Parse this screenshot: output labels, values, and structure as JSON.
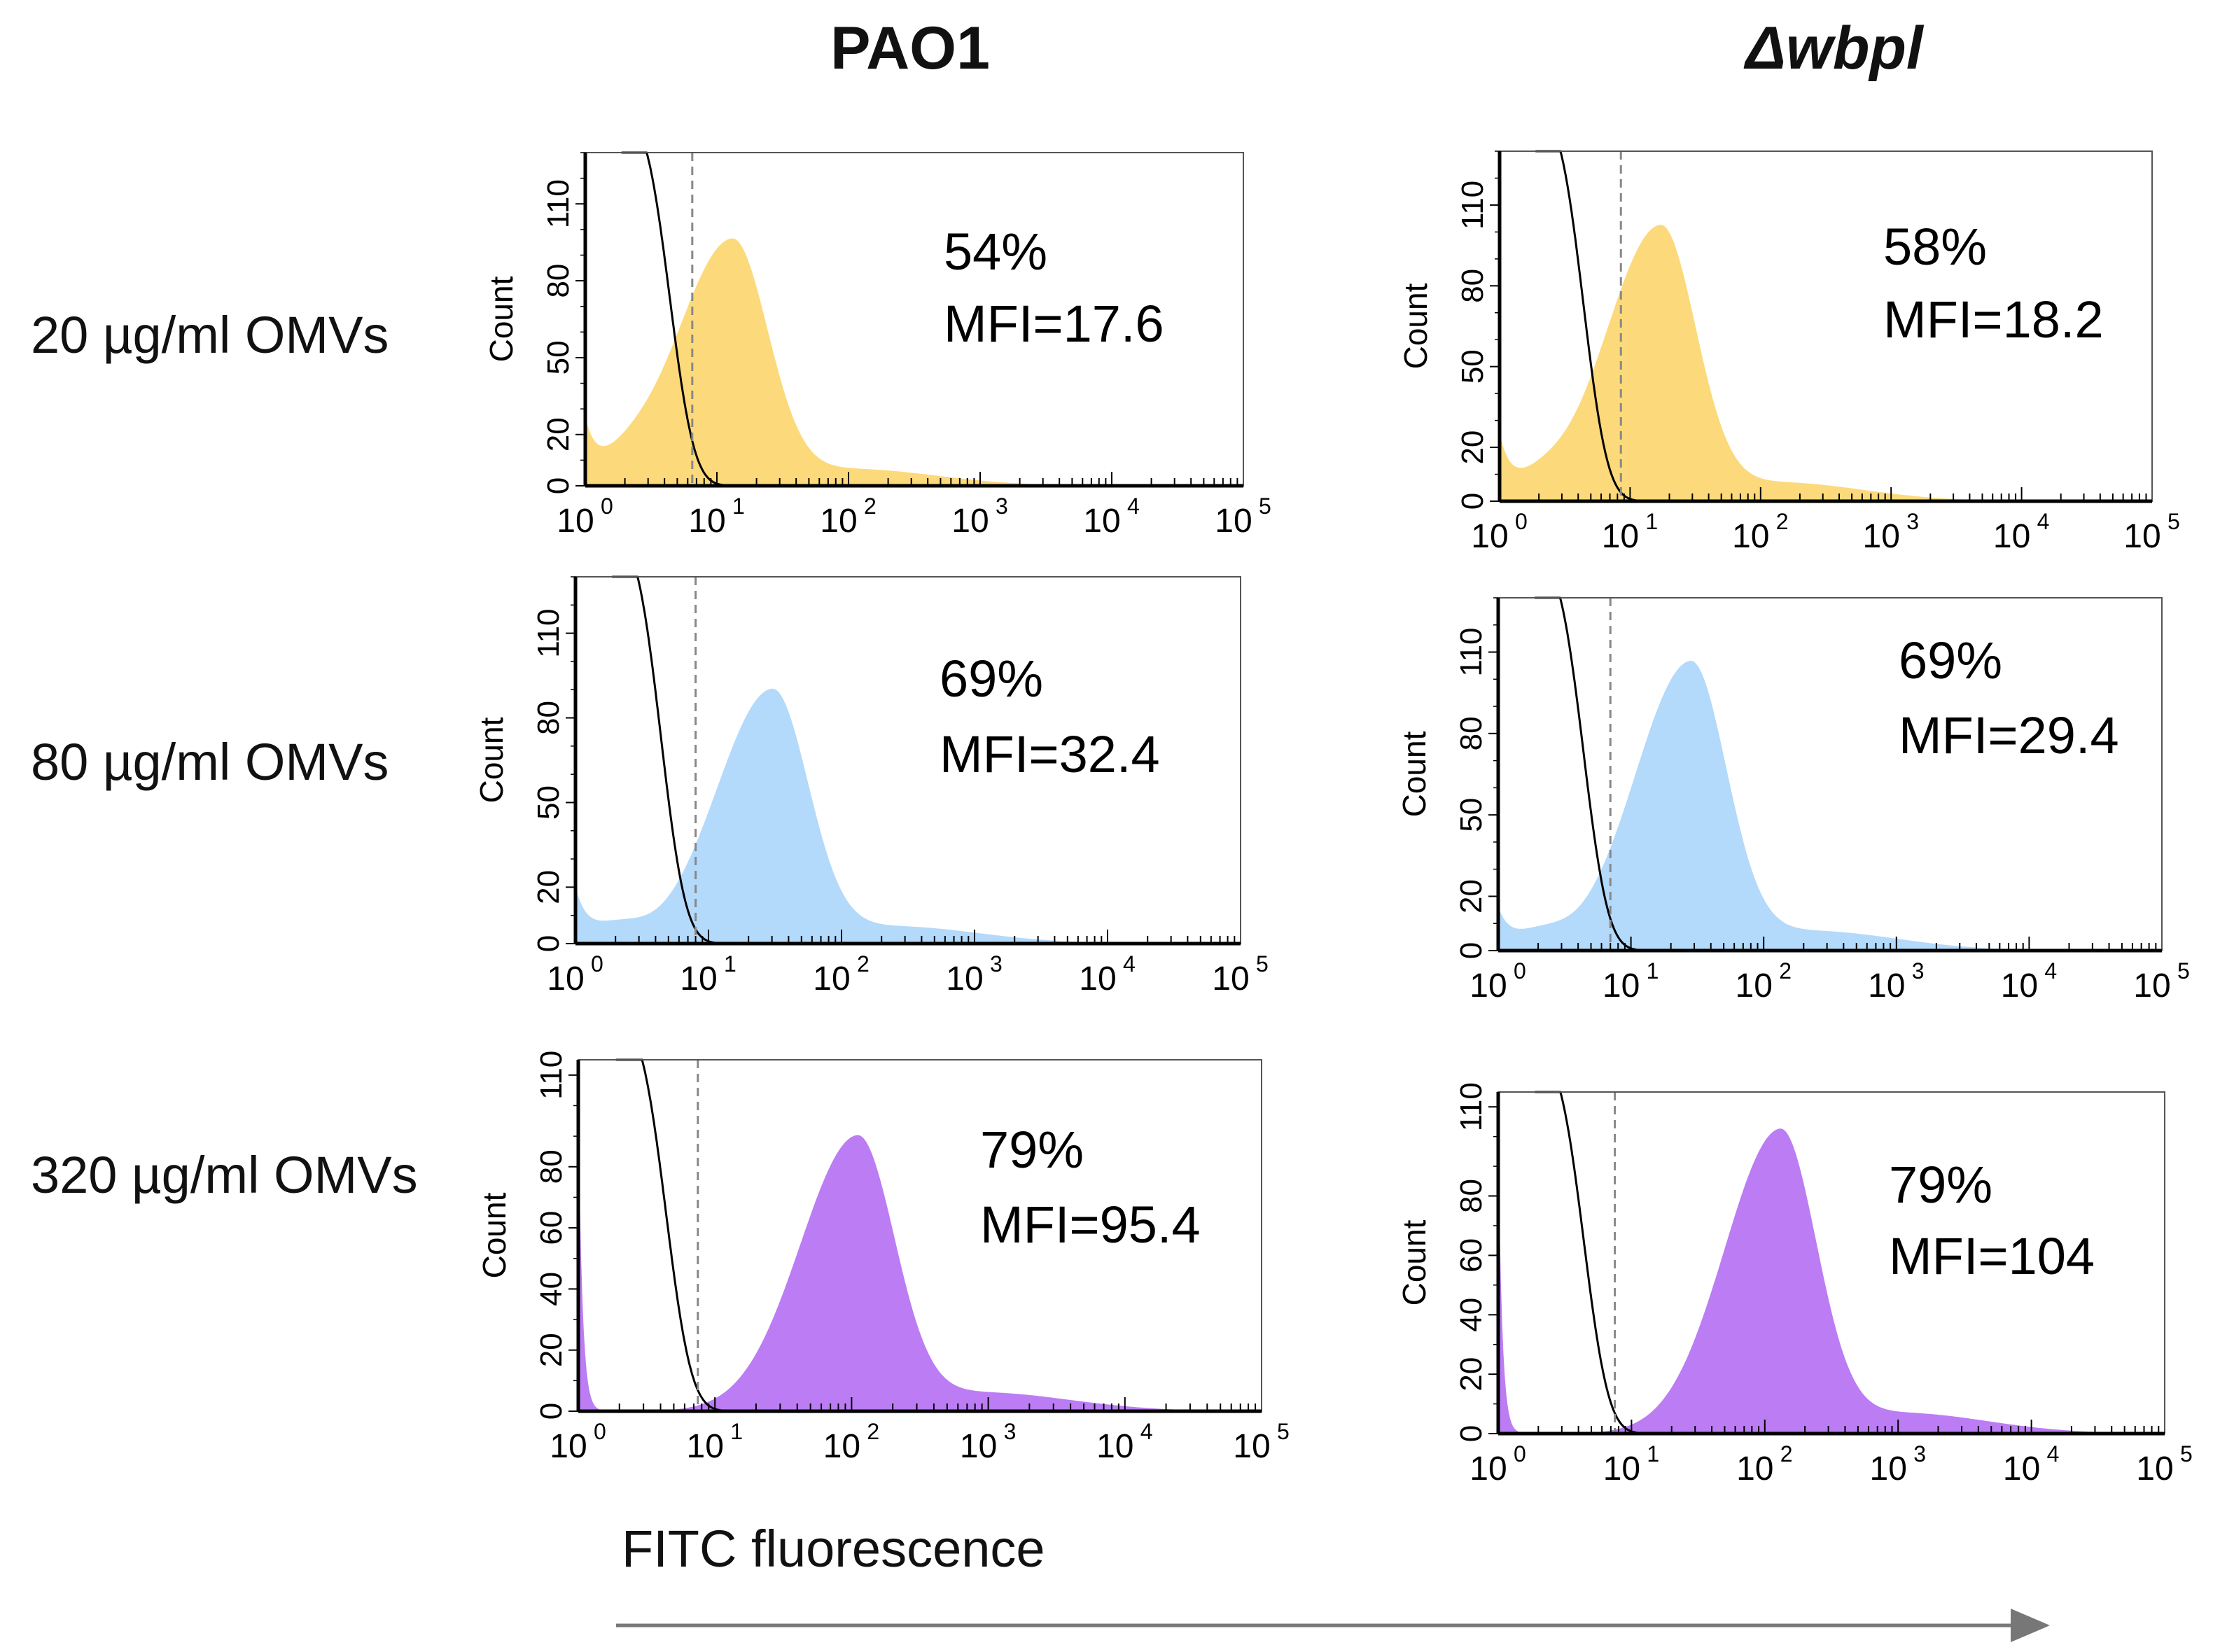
{
  "columns": [
    "PAO1",
    "Δwbpl"
  ],
  "rows": [
    "20 µg/ml OMVs",
    "80 µg/ml OMVs",
    "320 µg/ml OMVs"
  ],
  "x_axis_caption": "FITC fluorescence",
  "colors": {
    "yellow": "#fcd97a",
    "blue": "#b3d9fb",
    "purple": "#bb7cf4",
    "axis": "#000000",
    "gate": "#888888",
    "arrow": "#777777"
  },
  "chart_data": [
    {
      "type": "area",
      "id": "pao1-20",
      "column": "PAO1",
      "row": "20 µg/ml OMVs",
      "fill": "yellow",
      "percent": "54%",
      "mfi": "MFI=17.6",
      "gate_x": 6.5,
      "peak_x": 13,
      "peak_y": 94,
      "left_y": 22,
      "y_ticks": [
        "0",
        "20",
        "50",
        "80",
        "110"
      ],
      "ylabel": "Count",
      "ylim": [
        0,
        130
      ],
      "x_ticks": [
        "10",
        "10",
        "10",
        "10",
        "10",
        "10"
      ],
      "x_exps": [
        "0",
        "1",
        "2",
        "3",
        "4",
        "5"
      ],
      "xlim": [
        1,
        100000
      ]
    },
    {
      "type": "area",
      "id": "pao1-80",
      "column": "PAO1",
      "row": "80 µg/ml OMVs",
      "fill": "blue",
      "percent": "69%",
      "mfi": "MFI=32.4",
      "gate_x": 8,
      "peak_x": 30,
      "peak_y": 88,
      "left_y": 18,
      "y_ticks": [
        "0",
        "20",
        "50",
        "80",
        "110"
      ],
      "ylabel": "Count",
      "ylim": [
        0,
        130
      ],
      "x_ticks": [
        "10",
        "10",
        "10",
        "10",
        "10",
        "10"
      ],
      "x_exps": [
        "0",
        "1",
        "2",
        "3",
        "4",
        "5"
      ],
      "xlim": [
        1,
        100000
      ]
    },
    {
      "type": "area",
      "id": "pao1-320",
      "column": "PAO1",
      "row": "320 µg/ml OMVs",
      "fill": "purple",
      "percent": "79%",
      "mfi": "MFI=95.4",
      "gate_x": 7.5,
      "peak_x": 110,
      "peak_y": 88,
      "left_y": 100,
      "y_ticks": [
        "0",
        "20",
        "40",
        "60",
        "80",
        "110"
      ],
      "ylabel": "Count",
      "ylim": [
        0,
        115
      ],
      "x_ticks": [
        "10",
        "10",
        "10",
        "10",
        "10",
        "10"
      ],
      "x_exps": [
        "0",
        "1",
        "2",
        "3",
        "4",
        "5"
      ],
      "xlim": [
        1,
        100000
      ]
    },
    {
      "type": "area",
      "id": "wbpl-20",
      "column": "Δwbpl",
      "row": "20 µg/ml OMVs",
      "fill": "yellow",
      "percent": "58%",
      "mfi": "MFI=18.2",
      "gate_x": 8.5,
      "peak_x": 17,
      "peak_y": 100,
      "left_y": 22,
      "y_ticks": [
        "0",
        "20",
        "50",
        "80",
        "110"
      ],
      "ylabel": "Count",
      "ylim": [
        0,
        130
      ],
      "x_ticks": [
        "10",
        "10",
        "10",
        "10",
        "10",
        "10"
      ],
      "x_exps": [
        "0",
        "1",
        "2",
        "3",
        "4",
        "5"
      ],
      "xlim": [
        1,
        100000
      ]
    },
    {
      "type": "area",
      "id": "wbpl-80",
      "column": "Δwbpl",
      "row": "80 µg/ml OMVs",
      "fill": "blue",
      "percent": "69%",
      "mfi": "MFI=29.4",
      "gate_x": 7,
      "peak_x": 28,
      "peak_y": 104,
      "left_y": 14,
      "y_ticks": [
        "0",
        "20",
        "50",
        "80",
        "110"
      ],
      "ylabel": "Count",
      "ylim": [
        0,
        130
      ],
      "x_ticks": [
        "10",
        "10",
        "10",
        "10",
        "10",
        "10"
      ],
      "x_exps": [
        "0",
        "1",
        "2",
        "3",
        "4",
        "5"
      ],
      "xlim": [
        1,
        100000
      ]
    },
    {
      "type": "area",
      "id": "wbpl-320",
      "column": "Δwbpl",
      "row": "320 µg/ml OMVs",
      "fill": "purple",
      "percent": "79%",
      "mfi": "MFI=104",
      "gate_x": 7.5,
      "peak_x": 130,
      "peak_y": 100,
      "left_y": 100,
      "y_ticks": [
        "0",
        "20",
        "40",
        "60",
        "80",
        "110"
      ],
      "ylabel": "Count",
      "ylim": [
        0,
        115
      ],
      "x_ticks": [
        "10",
        "10",
        "10",
        "10",
        "10",
        "10"
      ],
      "x_exps": [
        "0",
        "1",
        "2",
        "3",
        "4",
        "5"
      ],
      "xlim": [
        1,
        100000
      ]
    }
  ]
}
